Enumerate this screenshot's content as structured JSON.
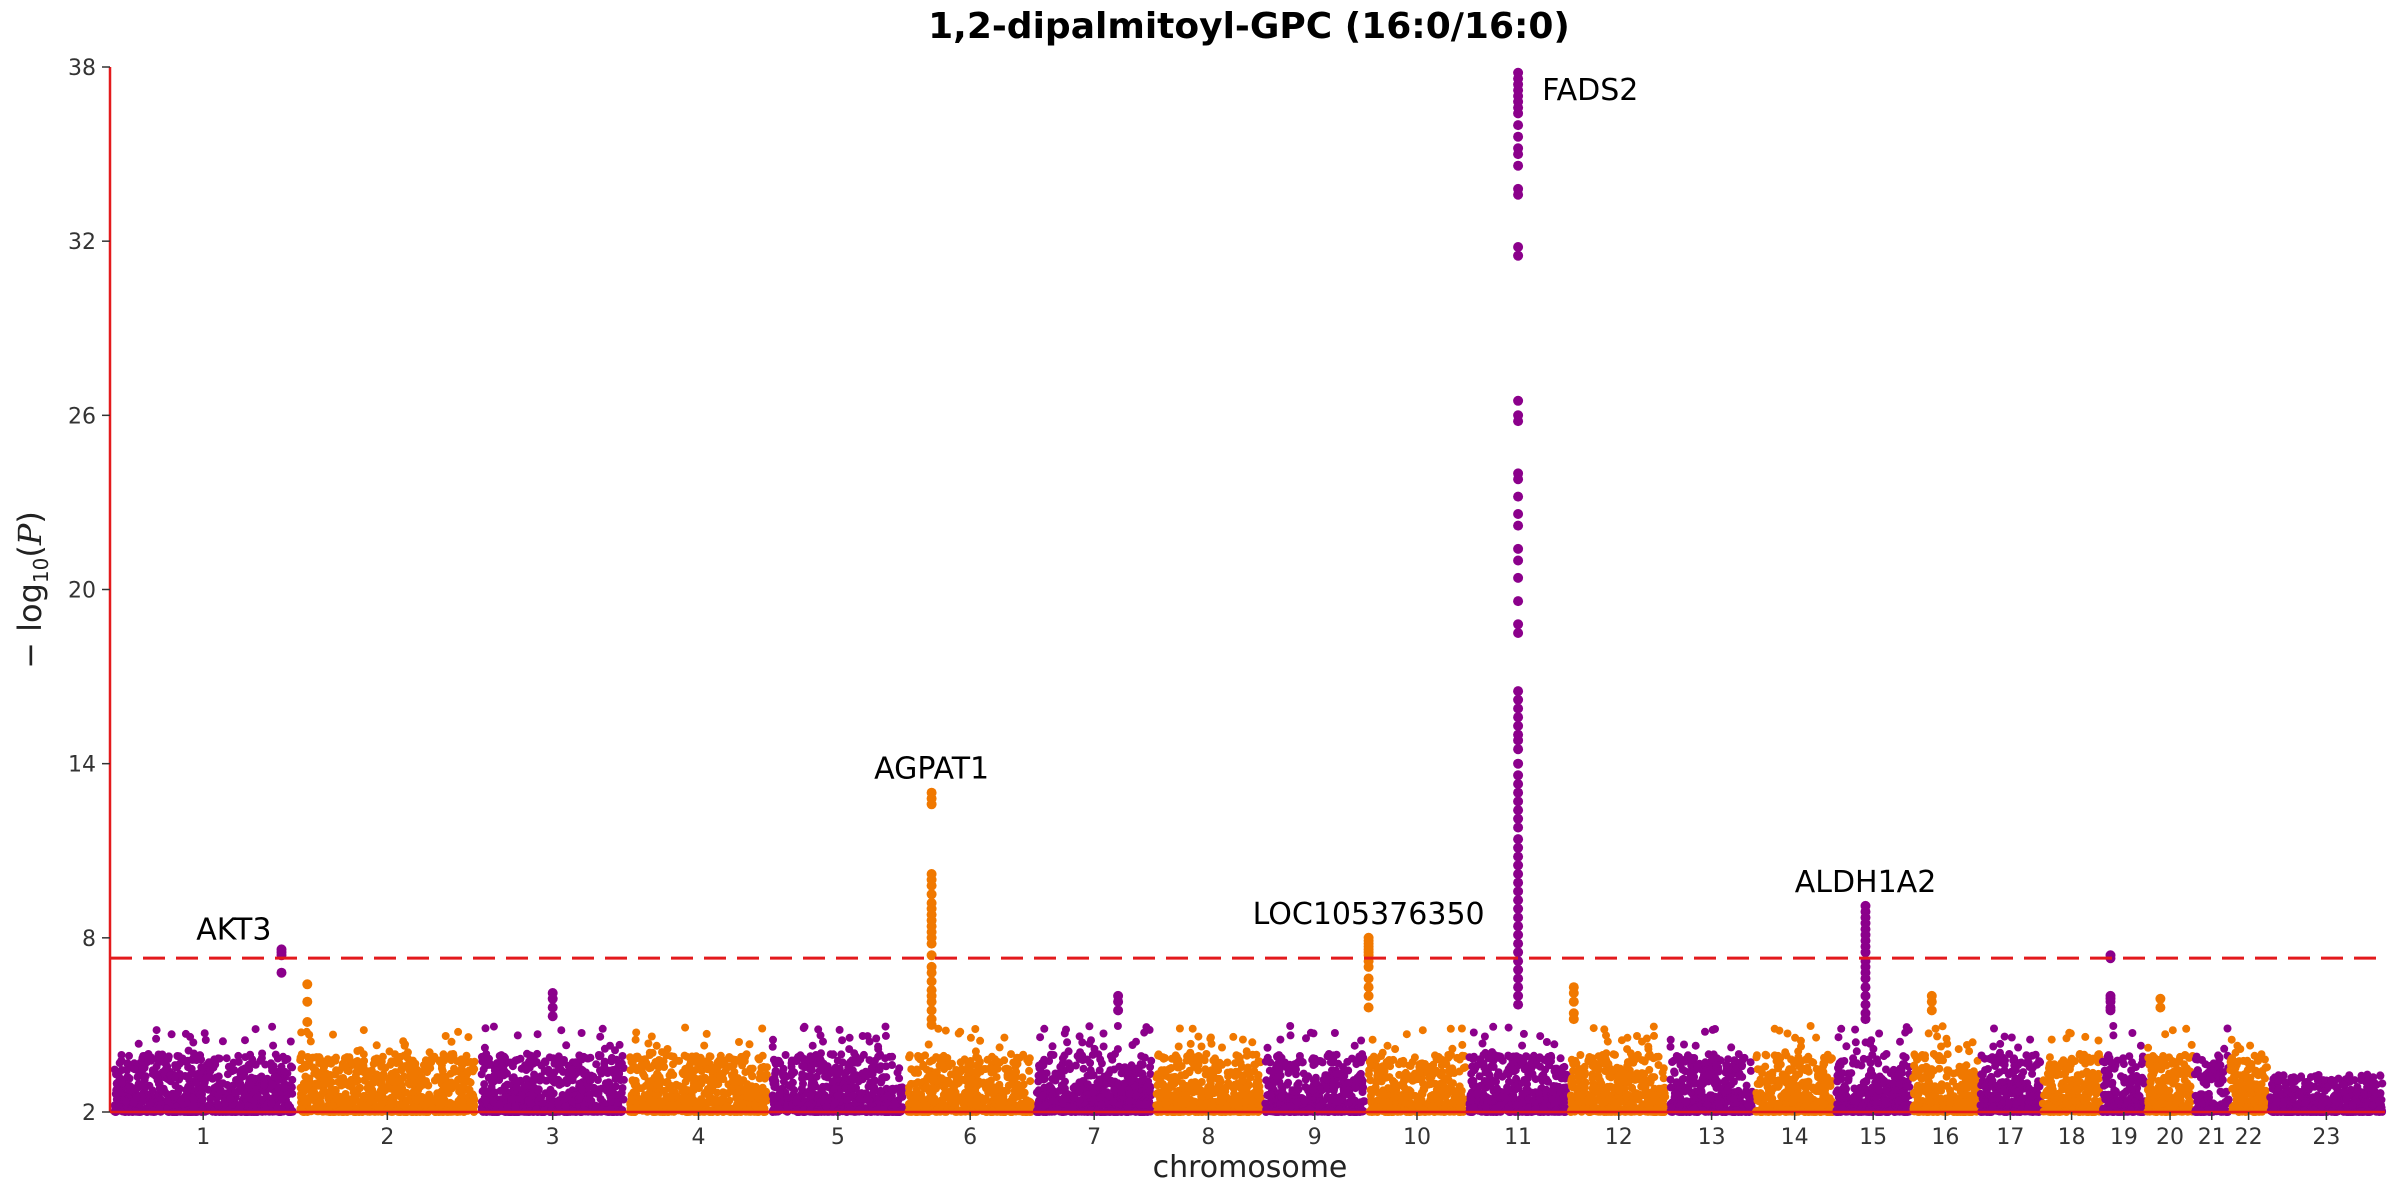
{
  "chart_data": {
    "type": "scatter",
    "title": "1,2-dipalmitoyl-GPC (16:0/16:0)",
    "xlabel": "chromosome",
    "ylabel": {
      "prefix": "− log",
      "sub": "10",
      "open": "(",
      "var": "P",
      "close": ")"
    },
    "ylim": [
      2,
      38
    ],
    "yticks": [
      2,
      8,
      14,
      20,
      26,
      32,
      38
    ],
    "threshold": 7.3,
    "threshold_style": "dashed",
    "colors": {
      "odd": "#8b008b",
      "even": "#f07800",
      "axis": "#e31a1c",
      "threshold": "#e31a1c"
    },
    "chromosomes": [
      {
        "label": "1",
        "length": 248
      },
      {
        "label": "2",
        "length": 242
      },
      {
        "label": "3",
        "length": 198
      },
      {
        "label": "4",
        "length": 190
      },
      {
        "label": "5",
        "length": 181
      },
      {
        "label": "6",
        "length": 171
      },
      {
        "label": "7",
        "length": 159
      },
      {
        "label": "8",
        "length": 145
      },
      {
        "label": "9",
        "length": 138
      },
      {
        "label": "10",
        "length": 134
      },
      {
        "label": "11",
        "length": 135
      },
      {
        "label": "12",
        "length": 133
      },
      {
        "label": "13",
        "length": 114
      },
      {
        "label": "14",
        "length": 107
      },
      {
        "label": "15",
        "length": 102
      },
      {
        "label": "16",
        "length": 90
      },
      {
        "label": "17",
        "length": 83
      },
      {
        "label": "18",
        "length": 80
      },
      {
        "label": "19",
        "length": 59
      },
      {
        "label": "20",
        "length": 64
      },
      {
        "label": "21",
        "length": 47
      },
      {
        "label": "22",
        "length": 51
      },
      {
        "label": "23",
        "length": 156
      }
    ],
    "peaks": [
      {
        "chrom": 1,
        "pos": 0.92,
        "values": [
          7.6,
          7.5,
          7.4,
          6.8
        ]
      },
      {
        "chrom": 2,
        "pos": 0.06,
        "values": [
          6.4,
          5.8,
          5.1
        ]
      },
      {
        "chrom": 3,
        "pos": 0.5,
        "values": [
          6.1,
          5.9,
          5.6,
          5.3
        ]
      },
      {
        "chrom": 6,
        "pos": 0.2,
        "values": [
          13.0,
          12.8,
          12.6,
          10.2,
          10.0,
          9.8,
          9.5,
          9.2,
          9.0,
          8.8,
          8.6,
          8.4,
          8.2,
          8.0,
          7.8,
          7.4,
          7.0,
          6.8,
          6.5,
          6.2,
          6.0,
          5.8,
          5.5,
          5.2,
          5.0
        ]
      },
      {
        "chrom": 7,
        "pos": 0.7,
        "values": [
          6.0,
          5.8,
          5.5
        ]
      },
      {
        "chrom": 10,
        "pos": 0.02,
        "values": [
          8.0,
          7.9,
          7.8,
          7.7,
          7.6,
          7.5,
          7.4,
          7.2,
          7.0,
          6.6,
          6.3,
          6.0,
          5.6
        ]
      },
      {
        "chrom": 11,
        "pos": 0.5,
        "values": [
          37.8,
          37.6,
          37.4,
          37.2,
          37.0,
          36.8,
          36.6,
          36.4,
          36.0,
          35.6,
          35.2,
          35.0,
          34.6,
          33.8,
          33.6,
          31.8,
          31.5,
          26.5,
          26.0,
          25.8,
          24.0,
          23.8,
          23.2,
          22.6,
          22.2,
          21.4,
          21.0,
          20.4,
          19.6,
          18.8,
          18.5,
          16.5,
          16.2,
          15.9,
          15.6,
          15.3,
          15.0,
          14.8,
          14.5,
          14.0,
          13.6,
          13.3,
          13.0,
          12.7,
          12.4,
          12.1,
          11.8,
          11.4,
          11.1,
          10.8,
          10.5,
          10.2,
          9.9,
          9.6,
          9.3,
          9.0,
          8.7,
          8.4,
          8.1,
          7.8,
          7.5,
          7.2,
          6.9,
          6.6,
          6.3,
          6.0,
          5.7
        ]
      },
      {
        "chrom": 12,
        "pos": 0.05,
        "values": [
          6.3,
          6.1,
          5.8,
          5.4,
          5.2
        ]
      },
      {
        "chrom": 15,
        "pos": 0.4,
        "values": [
          9.1,
          8.9,
          8.7,
          8.5,
          8.3,
          8.1,
          7.9,
          7.7,
          7.5,
          7.2,
          7.0,
          6.8,
          6.6,
          6.3,
          6.0,
          5.7,
          5.4,
          5.2
        ]
      },
      {
        "chrom": 16,
        "pos": 0.3,
        "values": [
          6.0,
          5.8,
          5.5
        ]
      },
      {
        "chrom": 19,
        "pos": 0.2,
        "values": [
          7.4,
          7.3,
          6.0,
          5.9,
          5.8,
          5.6,
          5.5
        ]
      },
      {
        "chrom": 20,
        "pos": 0.3,
        "values": [
          5.9,
          5.6
        ]
      }
    ],
    "annotations": [
      {
        "label": "AKT3",
        "chrom": 1,
        "pos": 0.92,
        "y": 7.6,
        "anchor": "right"
      },
      {
        "label": "AGPAT1",
        "chrom": 6,
        "pos": 0.2,
        "y": 13.0,
        "anchor": "middle"
      },
      {
        "label": "LOC105376350",
        "chrom": 10,
        "pos": 0.02,
        "y": 8.0,
        "anchor": "middle"
      },
      {
        "label": "FADS2",
        "chrom": 11,
        "pos": 0.5,
        "y": 37.8,
        "anchor": "left"
      },
      {
        "label": "ALDH1A2",
        "chrom": 15,
        "pos": 0.4,
        "y": 9.1,
        "anchor": "middle"
      }
    ]
  }
}
